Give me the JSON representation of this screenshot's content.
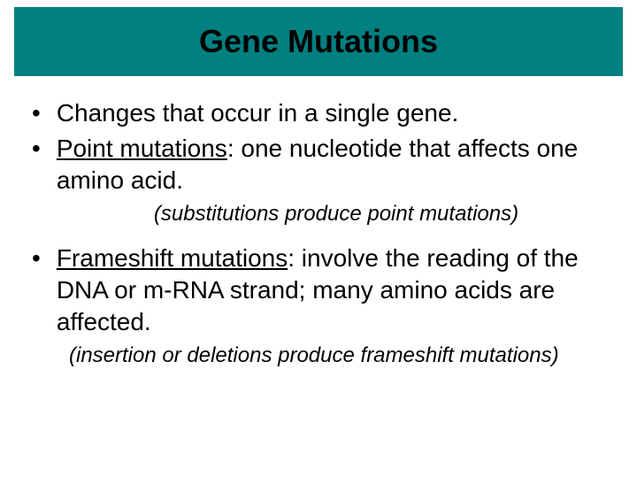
{
  "title": "Gene Mutations",
  "colors": {
    "title_bg": "#008080",
    "page_bg": "#ffffff",
    "text": "#000000"
  },
  "typography": {
    "title_fontsize": 36,
    "title_fontweight": "bold",
    "body_fontsize": 28,
    "note_fontsize": 24,
    "note_fontstyle": "italic",
    "font_family": "Arial"
  },
  "bullets": [
    {
      "text": "Changes that occur in a single gene.",
      "term": null,
      "rest": null
    },
    {
      "term": "Point mutations",
      "rest": ": one nucleotide that affects one amino acid."
    },
    {
      "term": "Frameshift mutations",
      "rest": ": involve the reading of the DNA or m-RNA strand; many amino acids are affected."
    }
  ],
  "notes": [
    "(substitutions produce point mutations)",
    "(insertion or deletions produce frameshift mutations)"
  ]
}
